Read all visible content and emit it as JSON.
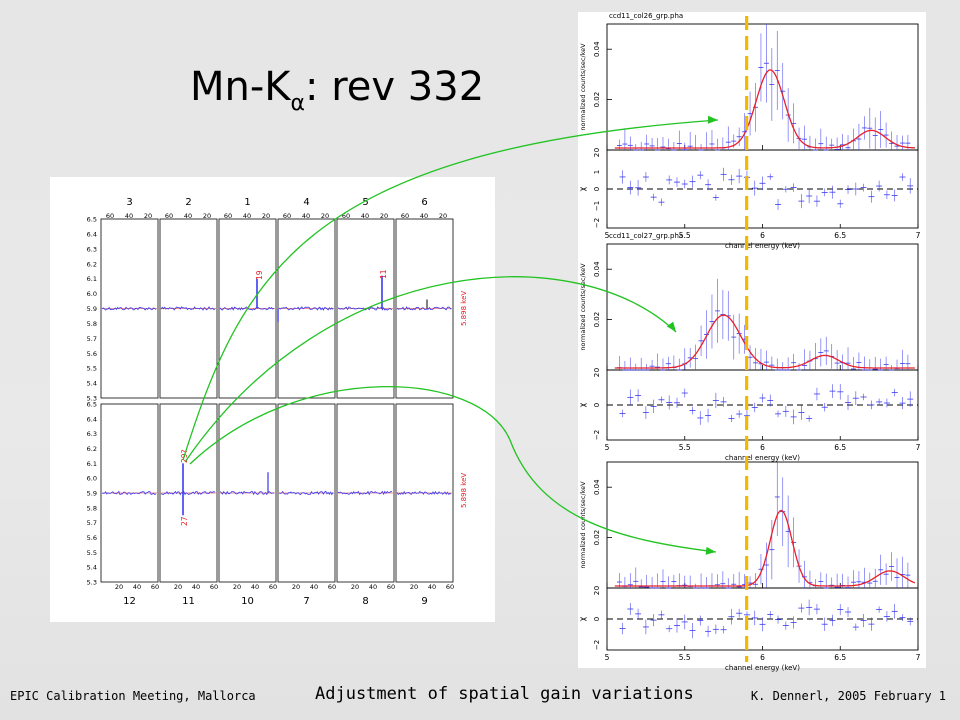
{
  "slide": {
    "title_main": "Mn-K",
    "title_sub": "α",
    "title_rest": ": rev 332",
    "footer_left": "EPIC Calibration Meeting, Mallorca",
    "footer_center": "Adjustment of spatial gain variations",
    "footer_right": "K. Dennerl, 2005 February 1"
  },
  "chart_data": [
    {
      "type": "line",
      "panel": "ccd-strip-grid",
      "top_column_labels": [
        "3",
        "2",
        "1",
        "4",
        "5",
        "6"
      ],
      "bottom_column_labels": [
        "12",
        "11",
        "10",
        "7",
        "8",
        "9"
      ],
      "top_tick_labels": [
        "60",
        "40",
        "20",
        "60",
        "40",
        "20",
        "60",
        "40",
        "20",
        "60",
        "40",
        "20",
        "60",
        "40",
        "20",
        "60",
        "40",
        "20"
      ],
      "bottom_tick_labels": [
        "20",
        "40",
        "60",
        "20",
        "40",
        "60",
        "20",
        "40",
        "60",
        "20",
        "40",
        "60",
        "20",
        "40",
        "60",
        "20",
        "40",
        "60"
      ],
      "yticks": [
        "6.5",
        "6.4",
        "6.3",
        "6.2",
        "6.1",
        "6.0",
        "5.9",
        "5.8",
        "5.7",
        "5.6",
        "5.5",
        "5.4",
        "5.3"
      ],
      "ylim": [
        5.3,
        6.5
      ],
      "baseline": 5.9,
      "annotations": [
        "19",
        "11",
        "5.898 keV",
        "29?",
        "27",
        "5.898 keV"
      ],
      "spikes": [
        {
          "row": "top",
          "column": "1",
          "value": 6.1
        },
        {
          "row": "top",
          "column": "5",
          "value": 6.12
        },
        {
          "row": "bottom",
          "column": "11",
          "value": 6.1
        },
        {
          "row": "bottom",
          "column": "11",
          "value": 5.75
        }
      ]
    },
    {
      "type": "line",
      "title": "ccd11_col26_grp.pha",
      "xlabel": "channel energy (keV)",
      "ylabel": "normalized counts/sec/keV",
      "residual_label": "χ",
      "xlim": [
        5,
        7
      ],
      "xticks": [
        "5",
        "5.5",
        "6",
        "6.5",
        "7"
      ],
      "ylim": [
        0,
        0.05
      ],
      "yticks": [
        "0",
        "0.02",
        "0.04"
      ],
      "residual_yticks": [
        "2",
        "1",
        "0",
        "−1",
        "−2"
      ],
      "peaks": [
        {
          "x": 6.05,
          "y": 0.031
        },
        {
          "x": 6.7,
          "y": 0.007
        }
      ]
    },
    {
      "type": "line",
      "title": "ccd11_col27_grp.pha",
      "xlabel": "channel energy (keV)",
      "ylabel": "normalized counts/sec/keV",
      "residual_label": "χ",
      "xlim": [
        5,
        7
      ],
      "xticks": [
        "5",
        "5.5",
        "6",
        "6.5",
        "7"
      ],
      "ylim": [
        0,
        0.05
      ],
      "yticks": [
        "0",
        "0.02",
        "0.04"
      ],
      "residual_yticks": [
        "2",
        "0",
        "−2"
      ],
      "peaks": [
        {
          "x": 5.75,
          "y": 0.021
        },
        {
          "x": 6.4,
          "y": 0.005
        }
      ]
    },
    {
      "type": "line",
      "title": "",
      "xlabel": "channel energy (keV)",
      "ylabel": "normalized counts/sec/keV",
      "residual_label": "χ",
      "xlim": [
        5,
        7
      ],
      "xticks": [
        "5",
        "5.5",
        "6",
        "6.5",
        "7"
      ],
      "ylim": [
        0,
        0.05
      ],
      "yticks": [
        "0",
        "0.02",
        "0.04"
      ],
      "residual_yticks": [
        "2",
        "0",
        "−2"
      ],
      "peaks": [
        {
          "x": 6.12,
          "y": 0.03
        },
        {
          "x": 6.82,
          "y": 0.006
        }
      ]
    }
  ],
  "colors": {
    "data": "#3a3af0",
    "model": "#e8202a",
    "arrow": "#22c322",
    "marker": "#f5b800",
    "annotation": "#e8202a"
  }
}
